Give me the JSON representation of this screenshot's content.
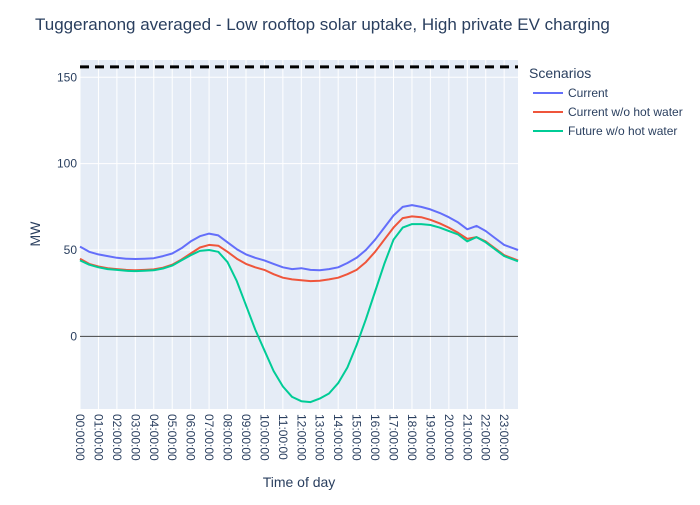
{
  "chart_data": {
    "type": "line",
    "title": "Tuggeranong averaged - Low rooftop solar uptake, High private EV charging",
    "xlabel": "Time of day",
    "ylabel": "MW",
    "x_ticks": [
      "00:00:00",
      "01:00:00",
      "02:00:00",
      "03:00:00",
      "04:00:00",
      "05:00:00",
      "06:00:00",
      "07:00:00",
      "08:00:00",
      "09:00:00",
      "10:00:00",
      "11:00:00",
      "12:00:00",
      "13:00:00",
      "14:00:00",
      "15:00:00",
      "16:00:00",
      "17:00:00",
      "18:00:00",
      "19:00:00",
      "20:00:00",
      "21:00:00",
      "22:00:00",
      "23:00:00"
    ],
    "y_ticks": [
      0,
      50,
      100,
      150
    ],
    "xlim": [
      0,
      23.75
    ],
    "ylim": [
      -42,
      160
    ],
    "reference_line": {
      "style": "dashed",
      "color": "#000000",
      "y": 156
    },
    "zero_line": {
      "y": 0,
      "color": "#444444"
    },
    "legend": {
      "title": "Scenarios",
      "placement": "right"
    },
    "x": [
      0,
      0.5,
      1,
      1.5,
      2,
      2.5,
      3,
      3.5,
      4,
      4.5,
      5,
      5.5,
      6,
      6.5,
      7,
      7.5,
      8,
      8.5,
      9,
      9.5,
      10,
      10.5,
      11,
      11.5,
      12,
      12.5,
      13,
      13.5,
      14,
      14.5,
      15,
      15.5,
      16,
      16.5,
      17,
      17.5,
      18,
      18.5,
      19,
      19.5,
      20,
      20.5,
      21,
      21.5,
      22,
      22.5,
      23,
      23.5,
      23.75
    ],
    "series": [
      {
        "name": "Current",
        "color": "#636efa",
        "values": [
          52,
          49,
          47.5,
          46.5,
          45.5,
          45,
          44.8,
          45,
          45.3,
          46.5,
          48,
          51,
          55,
          58,
          59.5,
          58.5,
          54.5,
          50.5,
          47.5,
          45.5,
          44,
          42,
          40,
          39,
          39.5,
          38.5,
          38.3,
          39,
          40,
          42.5,
          45.5,
          50,
          56,
          63,
          70,
          75,
          76,
          75,
          73.5,
          71.5,
          69,
          66,
          62,
          64,
          61,
          57,
          53,
          51,
          50
        ]
      },
      {
        "name": "Current w/o hot water",
        "color": "#ef553b",
        "values": [
          45,
          42,
          40.5,
          39.5,
          39,
          38.5,
          38.3,
          38.5,
          38.8,
          39.8,
          41.5,
          44.5,
          48,
          51.5,
          53,
          52.5,
          49,
          45,
          42,
          40,
          38.5,
          36,
          34,
          33,
          32.5,
          32,
          32.2,
          33,
          34,
          36,
          38.5,
          43,
          49,
          56,
          63,
          68.5,
          69.5,
          69,
          67.5,
          65.5,
          63,
          60,
          56.5,
          57.5,
          55,
          51,
          47,
          45,
          44
        ]
      },
      {
        "name": "Future w/o hot water",
        "color": "#00cc96",
        "values": [
          44,
          41.5,
          40,
          39,
          38.5,
          38,
          37.8,
          38,
          38.3,
          39.3,
          41,
          44,
          47,
          49.5,
          50,
          49,
          43,
          32,
          18,
          4,
          -8,
          -20,
          -29,
          -35,
          -37.5,
          -38,
          -36,
          -33,
          -27,
          -18,
          -5,
          10,
          26,
          42,
          56,
          63,
          65,
          65,
          64.5,
          63,
          61,
          59,
          55,
          57.5,
          54.5,
          50.5,
          46.5,
          44.5,
          43.5
        ]
      }
    ]
  }
}
